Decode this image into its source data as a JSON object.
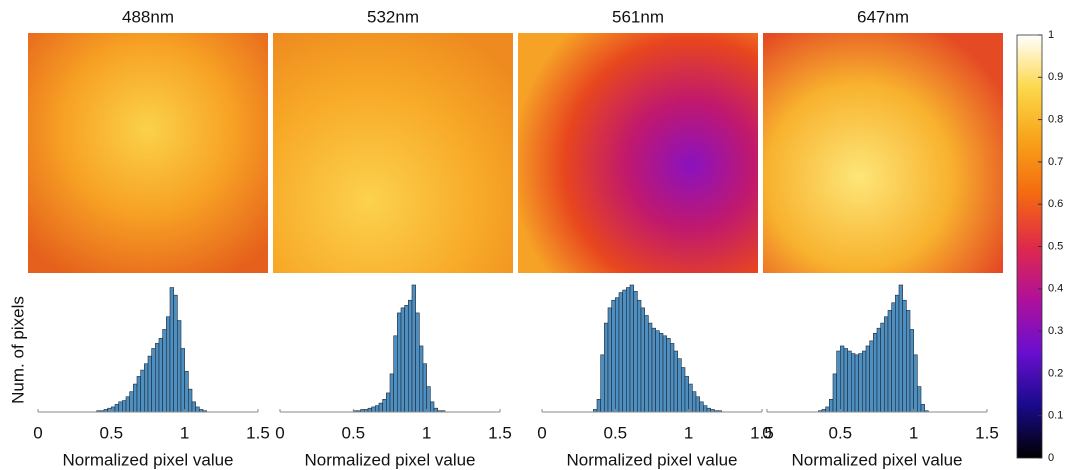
{
  "chart_data": [
    {
      "type": "histogram",
      "title": "488nm",
      "xlabel": "Normalized pixel value",
      "ylabel": "Num. of pixels",
      "color": "#4f8fc0",
      "xlim": [
        0,
        1.5
      ],
      "xticks": [
        0,
        0.5,
        1,
        1.5
      ],
      "ylim": [
        0,
        100
      ],
      "bins": [
        0.4,
        0.425,
        0.45,
        0.475,
        0.5,
        0.525,
        0.55,
        0.575,
        0.6,
        0.625,
        0.65,
        0.675,
        0.7,
        0.725,
        0.75,
        0.775,
        0.8,
        0.825,
        0.85,
        0.875,
        0.9,
        0.925,
        0.95,
        0.975,
        1.0,
        1.025,
        1.05,
        1.075,
        1.1,
        1.125,
        1.15
      ],
      "counts": [
        1,
        1,
        2,
        3,
        4,
        6,
        8,
        9,
        12,
        16,
        22,
        28,
        33,
        38,
        44,
        50,
        54,
        58,
        65,
        75,
        98,
        92,
        72,
        50,
        32,
        18,
        8,
        4,
        2,
        1
      ]
    },
    {
      "type": "histogram",
      "title": "532nm",
      "xlabel": "Normalized pixel value",
      "color": "#4f8fc0",
      "xlim": [
        0,
        1.5
      ],
      "xticks": [
        0,
        0.5,
        1,
        1.5
      ],
      "ylim": [
        0,
        100
      ],
      "bins": [
        0.5,
        0.525,
        0.55,
        0.575,
        0.6,
        0.625,
        0.65,
        0.675,
        0.7,
        0.725,
        0.75,
        0.775,
        0.8,
        0.825,
        0.85,
        0.875,
        0.9,
        0.925,
        0.95,
        0.975,
        1.0,
        1.025,
        1.05,
        1.075,
        1.1,
        1.125,
        1.15
      ],
      "counts": [
        1,
        1,
        2,
        2,
        3,
        4,
        5,
        7,
        10,
        15,
        30,
        60,
        78,
        82,
        84,
        88,
        100,
        78,
        52,
        38,
        20,
        8,
        3,
        1,
        1,
        0
      ]
    },
    {
      "type": "histogram",
      "title": "561nm",
      "xlabel": "Normalized pixel value",
      "color": "#4f8fc0",
      "xlim": [
        0,
        1.5
      ],
      "xticks": [
        0,
        0.5,
        1,
        1.5
      ],
      "ylim": [
        0,
        100
      ],
      "bins": [
        0.35,
        0.375,
        0.4,
        0.425,
        0.45,
        0.475,
        0.5,
        0.525,
        0.55,
        0.575,
        0.6,
        0.625,
        0.65,
        0.675,
        0.7,
        0.725,
        0.75,
        0.775,
        0.8,
        0.825,
        0.85,
        0.875,
        0.9,
        0.925,
        0.95,
        0.975,
        1.0,
        1.025,
        1.05,
        1.075,
        1.1,
        1.125,
        1.15,
        1.175,
        1.2,
        1.225
      ],
      "counts": [
        2,
        10,
        45,
        70,
        82,
        88,
        90,
        94,
        96,
        98,
        100,
        95,
        88,
        82,
        76,
        70,
        66,
        64,
        62,
        60,
        58,
        54,
        48,
        42,
        35,
        28,
        22,
        16,
        12,
        8,
        5,
        3,
        2,
        1,
        1
      ]
    },
    {
      "type": "histogram",
      "title": "647nm",
      "xlabel": "Normalized pixel value",
      "color": "#4f8fc0",
      "xlim": [
        0,
        1.5
      ],
      "xticks": [
        0,
        0.5,
        1,
        1.5
      ],
      "ylim": [
        0,
        100
      ],
      "bins": [
        0.35,
        0.375,
        0.4,
        0.425,
        0.45,
        0.475,
        0.5,
        0.525,
        0.55,
        0.575,
        0.6,
        0.625,
        0.65,
        0.675,
        0.7,
        0.725,
        0.75,
        0.775,
        0.8,
        0.825,
        0.85,
        0.875,
        0.9,
        0.925,
        0.95,
        0.975,
        1.0,
        1.025,
        1.05,
        1.075,
        1.1
      ],
      "counts": [
        1,
        2,
        4,
        10,
        30,
        48,
        52,
        50,
        48,
        46,
        45,
        46,
        48,
        52,
        56,
        62,
        66,
        70,
        75,
        80,
        86,
        92,
        100,
        88,
        80,
        65,
        45,
        20,
        6,
        1
      ]
    },
    {
      "type": "colorbar",
      "ylim": [
        0,
        1
      ],
      "yticks": [
        0,
        0.1,
        0.2,
        0.3,
        0.4,
        0.5,
        0.6,
        0.7,
        0.8,
        0.9,
        1
      ],
      "colors": [
        "#000000",
        "#1a0a8c",
        "#6a0fd0",
        "#b0109a",
        "#e02a4a",
        "#f46a10",
        "#f8a21a",
        "#fcd84a",
        "#ffffff"
      ]
    }
  ]
}
